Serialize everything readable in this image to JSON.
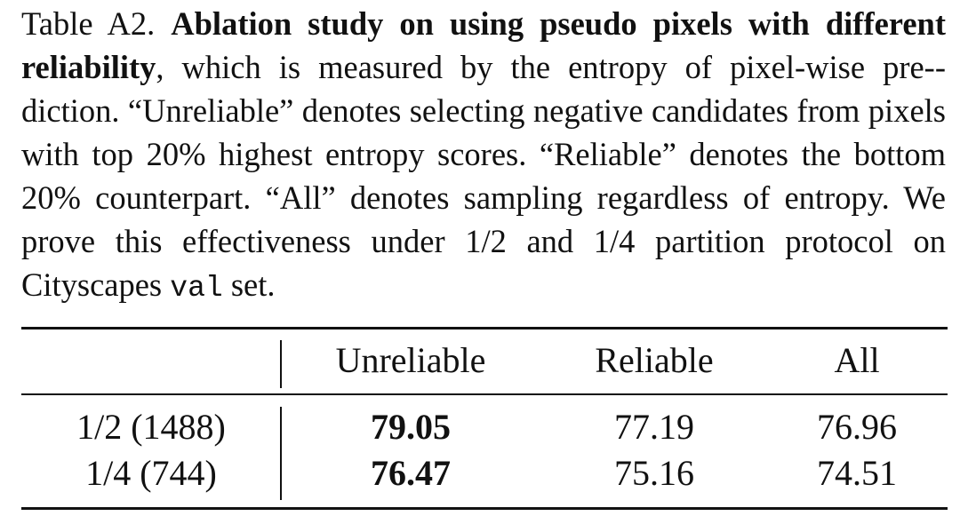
{
  "caption": {
    "label": "Table A2.",
    "title": "Ablation study on using pseudo pixels with different reliability",
    "text_1": ", which is measured by the entropy of pixel-wise pre-­diction. “Unreliable” denotes selecting negative candidates from pixels with top 20% highest entropy scores. “Reliable” denotes the bottom 20% counterpart. “All” denotes sampling regardless of entropy. We prove this effectiveness under 1/2 and 1/4 partition protocol on Cityscapes ",
    "code": "val",
    "text_2": " set."
  },
  "table": {
    "headers": [
      "",
      "Unreliable",
      "Reliable",
      "All"
    ],
    "rows": [
      {
        "label": "1/2 (1488)",
        "values": [
          "79.05",
          "77.19",
          "76.96"
        ]
      },
      {
        "label": "1/4 (744)",
        "values": [
          "76.47",
          "75.16",
          "74.51"
        ]
      }
    ],
    "bold_column": "Unreliable"
  }
}
